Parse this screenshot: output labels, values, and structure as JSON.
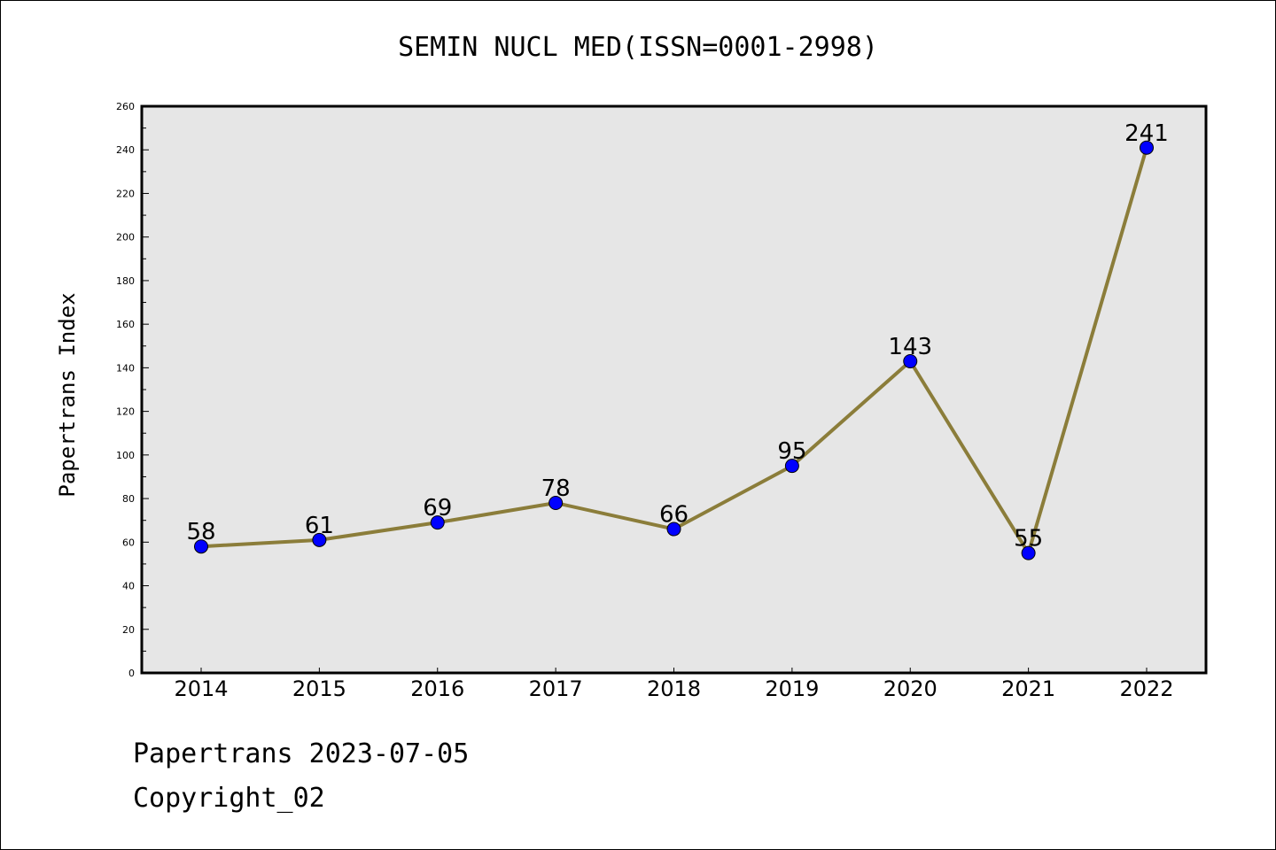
{
  "chart_data": {
    "type": "line",
    "title": "SEMIN NUCL MED(ISSN=0001-2998)",
    "xlabel": "",
    "ylabel": "Papertrans Index",
    "categories": [
      "2014",
      "2015",
      "2016",
      "2017",
      "2018",
      "2019",
      "2020",
      "2021",
      "2022"
    ],
    "series": [
      {
        "values": [
          58,
          61,
          69,
          78,
          66,
          95,
          143,
          55,
          241
        ]
      }
    ],
    "ylim": [
      0,
      260
    ],
    "yticks": [
      0,
      20,
      40,
      60,
      80,
      100,
      120,
      140,
      160,
      180,
      200,
      220,
      240,
      260
    ],
    "data_labels": [
      "58",
      "61",
      "69",
      "78",
      "66",
      "95",
      "143",
      "55",
      "241"
    ],
    "grid": false,
    "plot_background": "#e6e6e6",
    "line_color": "#8b7d3a",
    "marker_color": "#0000ff"
  },
  "footer": {
    "line1": "Papertrans 2023-07-05",
    "line2": "Copyright_02"
  }
}
